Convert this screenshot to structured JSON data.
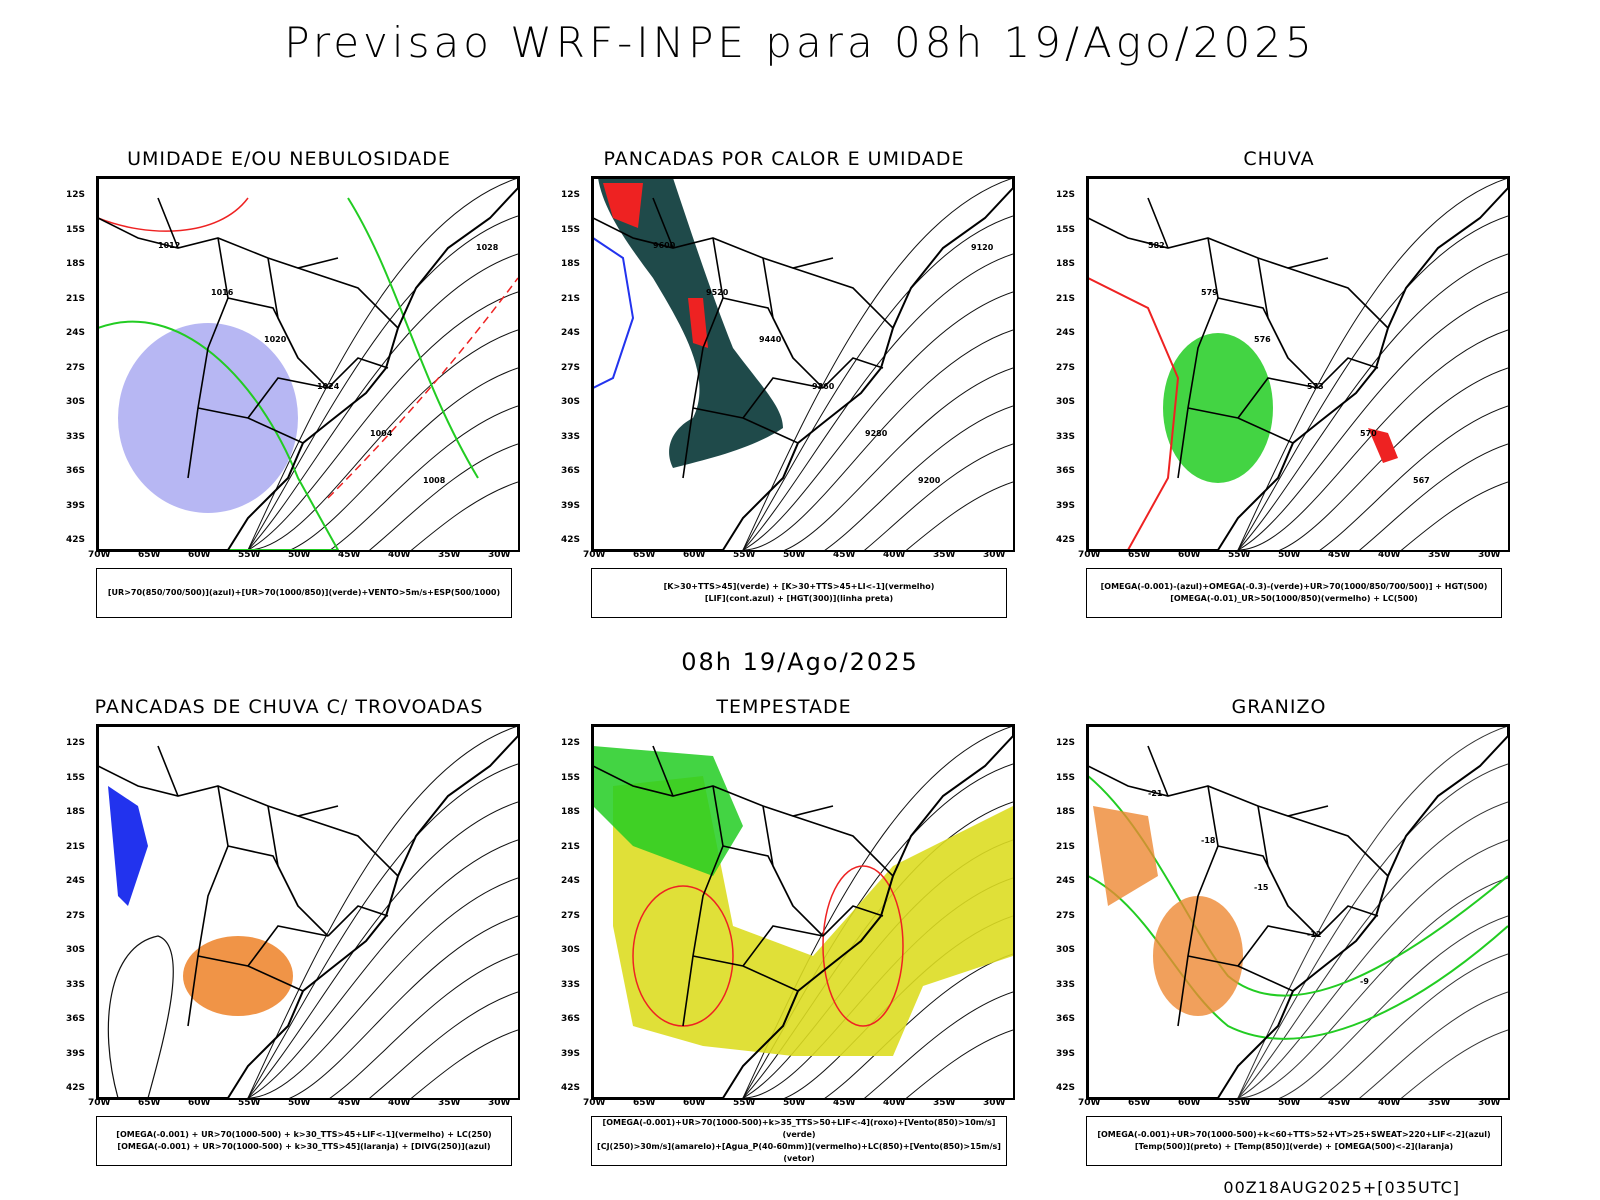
{
  "title": "Previsao WRF-INPE  para 08h 19/Ago/2025",
  "mid_title": "08h 19/Ago/2025",
  "footer": "00Z18AUG2025+[035UTC]",
  "lat_labels": [
    "12S",
    "15S",
    "18S",
    "21S",
    "24S",
    "27S",
    "30S",
    "33S",
    "36S",
    "39S",
    "42S"
  ],
  "lon_labels": [
    "70W",
    "65W",
    "60W",
    "55W",
    "50W",
    "45W",
    "40W",
    "35W",
    "30W"
  ],
  "panels": [
    {
      "title": "UMIDADE E/OU NEBULOSIDADE",
      "legend": [
        "[UR>70(850/700/500)](azul)+[UR>70(1000/850)](verde)+VENTO>5m/s+ESP(500/1000)"
      ],
      "isobars": [
        "1012",
        "1016",
        "1020",
        "1024",
        "1004",
        "1008",
        "1028"
      ]
    },
    {
      "title": "PANCADAS POR CALOR E UMIDADE",
      "legend": [
        "[K>30+TTS>45](verde) + [K>30+TTS>45+LI<-1](vermelho)",
        "[LIF](cont.azul) + [HGT(300)](linha preta)"
      ],
      "isobars": [
        "9600",
        "9520",
        "9440",
        "9360",
        "9280",
        "9200",
        "9120"
      ]
    },
    {
      "title": "CHUVA",
      "legend": [
        "[OMEGA(-0.001)-(azul)+OMEGA(-0.3)-(verde)+UR>70(1000/850/700/500)] + HGT(500)",
        "[OMEGA(-0.01)_UR>50(1000/850)(vermelho) + LC(500)"
      ],
      "isobars": [
        "582",
        "579",
        "576",
        "573",
        "570",
        "567"
      ]
    },
    {
      "title": "PANCADAS DE CHUVA C/ TROVOADAS",
      "legend": [
        "[OMEGA(-0.001) + UR>70(1000-500) + k>30_TTS>45+LIF<-1](vermelho) + LC(250)",
        "[OMEGA(-0.001) + UR>70(1000-500) + k>30_TTS>45](laranja) + [DIVG(250)](azul)"
      ],
      "isobars": []
    },
    {
      "title": "TEMPESTADE",
      "legend": [
        "[OMEGA(-0.001)+UR>70(1000-500)+k>35_TTS>50+LIF<-4](roxo)+[Vento(850)>10m/s](verde)",
        "[CJ(250)>30m/s](amarelo)+[Agua_P(40-60mm)](vermelho)+LC(850)+[Vento(850)>15m/s](vetor)"
      ],
      "isobars": []
    },
    {
      "title": "GRANIZO",
      "legend": [
        "[OMEGA(-0.001)+UR>70(1000-500)+k<60+TTS>52+VT>25+SWEAT>220+LIF<-2](azul)",
        "[Temp(500)](preto) + [Temp(850)](verde) + [OMEGA(500)<-2](laranja)"
      ],
      "isobars": [
        "-21",
        "-18",
        "-15",
        "-12",
        "-9"
      ]
    }
  ],
  "colors": {
    "green": "#22cc22",
    "red": "#ee2222",
    "blue": "#2233ee",
    "orange": "#ee8833",
    "yellow": "#dddd22",
    "teal": "#1f4a4a",
    "lavender": "#9999ee"
  }
}
